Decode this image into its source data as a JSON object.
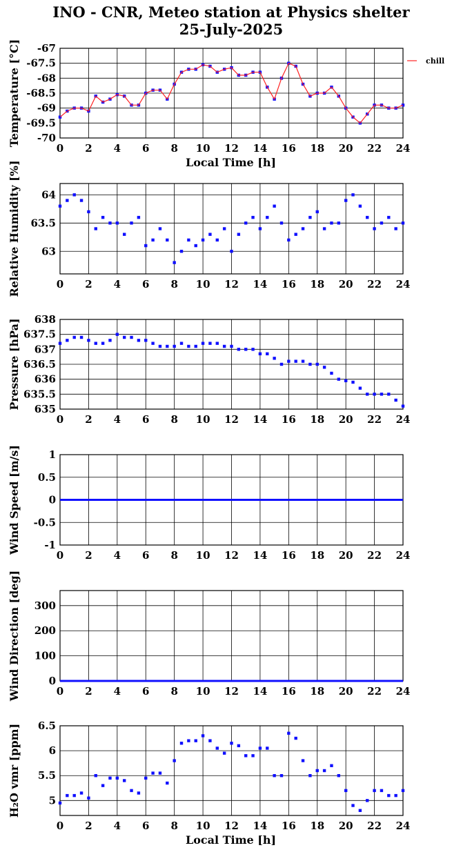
{
  "header": {
    "title_line1": "INO - CNR, Meteo station at Physics shelter",
    "title_line2": "25-July-2025"
  },
  "colors": {
    "series_blue": "#1010ff",
    "series_red": "#ff2020",
    "grid": "#000000"
  },
  "chart_data": [
    {
      "type": "scatter",
      "ylabel": "Temperature [°C]",
      "xlabel": "Local Time [h]",
      "xlim": [
        0,
        24
      ],
      "ylim": [
        -70,
        -67
      ],
      "xticks": [
        "0",
        "2",
        "4",
        "6",
        "8",
        "10",
        "12",
        "14",
        "16",
        "18",
        "20",
        "22",
        "24"
      ],
      "yticks": [
        {
          "v": -67,
          "t": "-67"
        },
        {
          "v": -67.5,
          "t": "-67.5"
        },
        {
          "v": -68,
          "t": "-68"
        },
        {
          "v": -68.5,
          "t": "-68.5"
        },
        {
          "v": -69,
          "t": "-69"
        },
        {
          "v": -69.5,
          "t": "-69.5"
        },
        {
          "v": -70,
          "t": "-70"
        }
      ],
      "grid": true,
      "legend": {
        "entries": [
          "chill"
        ],
        "position": "outside-right"
      },
      "series": [
        {
          "name": "",
          "color": "#1010ff",
          "marker": "square",
          "x": [
            0,
            0.5,
            1,
            1.5,
            2,
            2.5,
            3,
            3.5,
            4,
            4.5,
            5,
            5.5,
            6,
            6.5,
            7,
            7.5,
            8,
            8.5,
            9,
            9.5,
            10,
            10.5,
            11,
            11.5,
            12,
            12.5,
            13,
            13.5,
            14,
            14.5,
            15,
            15.5,
            16,
            16.5,
            17,
            17.5,
            18,
            18.5,
            19,
            19.5,
            20,
            20.5,
            21,
            21.5,
            22,
            22.5,
            23,
            23.5,
            24
          ],
          "y": [
            -69.3,
            -69.1,
            -69.0,
            -69.0,
            -69.1,
            -68.6,
            -68.8,
            -68.7,
            -68.55,
            -68.6,
            -68.9,
            -68.9,
            -68.5,
            -68.4,
            -68.4,
            -68.7,
            -68.2,
            -67.8,
            -67.7,
            -67.7,
            -67.55,
            -67.6,
            -67.8,
            -67.7,
            -67.65,
            -67.9,
            -67.9,
            -67.8,
            -67.8,
            -68.3,
            -68.7,
            -68.0,
            -67.5,
            -67.6,
            -68.2,
            -68.6,
            -68.5,
            -68.5,
            -68.3,
            -68.6,
            -69.0,
            -69.3,
            -69.5,
            -69.2,
            -68.9,
            -68.9,
            -69.0,
            -69.0,
            -68.9
          ]
        },
        {
          "name": "chill",
          "color": "#ff2020",
          "marker": "line",
          "x": [
            0,
            0.5,
            1,
            1.5,
            2,
            2.5,
            3,
            3.5,
            4,
            4.5,
            5,
            5.5,
            6,
            6.5,
            7,
            7.5,
            8,
            8.5,
            9,
            9.5,
            10,
            10.5,
            11,
            11.5,
            12,
            12.5,
            13,
            13.5,
            14,
            14.5,
            15,
            15.5,
            16,
            16.5,
            17,
            17.5,
            18,
            18.5,
            19,
            19.5,
            20,
            20.5,
            21,
            21.5,
            22,
            22.5,
            23,
            23.5,
            24
          ],
          "y": [
            -69.3,
            -69.1,
            -69.0,
            -69.0,
            -69.1,
            -68.6,
            -68.8,
            -68.7,
            -68.55,
            -68.6,
            -68.9,
            -68.9,
            -68.5,
            -68.4,
            -68.4,
            -68.7,
            -68.2,
            -67.8,
            -67.7,
            -67.7,
            -67.55,
            -67.6,
            -67.8,
            -67.7,
            -67.65,
            -67.9,
            -67.9,
            -67.8,
            -67.8,
            -68.3,
            -68.7,
            -68.0,
            -67.5,
            -67.6,
            -68.2,
            -68.6,
            -68.5,
            -68.5,
            -68.3,
            -68.6,
            -69.0,
            -69.3,
            -69.5,
            -69.2,
            -68.9,
            -68.9,
            -69.0,
            -69.0,
            -68.9
          ]
        }
      ]
    },
    {
      "type": "scatter",
      "ylabel": "Relative Humidity [%]",
      "xlabel": "",
      "xlim": [
        0,
        24
      ],
      "ylim": [
        62.6,
        64.2
      ],
      "xticks": [
        "0",
        "2",
        "4",
        "6",
        "8",
        "10",
        "12",
        "14",
        "16",
        "18",
        "20",
        "22",
        "24"
      ],
      "yticks": [
        {
          "v": 63,
          "t": "63"
        },
        {
          "v": 63.5,
          "t": "63.5"
        },
        {
          "v": 64,
          "t": "64"
        }
      ],
      "grid": true,
      "series": [
        {
          "name": "",
          "color": "#1010ff",
          "marker": "square",
          "x": [
            0,
            0.5,
            1,
            1.5,
            2,
            2.5,
            3,
            3.5,
            4,
            4.5,
            5,
            5.5,
            6,
            6.5,
            7,
            7.5,
            8,
            8.5,
            9,
            9.5,
            10,
            10.5,
            11,
            11.5,
            12,
            12.5,
            13,
            13.5,
            14,
            14.5,
            15,
            15.5,
            16,
            16.5,
            17,
            17.5,
            18,
            18.5,
            19,
            19.5,
            20,
            20.5,
            21,
            21.5,
            22,
            22.5,
            23,
            23.5,
            24
          ],
          "y": [
            63.8,
            63.9,
            64.0,
            63.9,
            63.7,
            63.4,
            63.6,
            63.5,
            63.5,
            63.3,
            63.5,
            63.6,
            63.1,
            63.2,
            63.4,
            63.2,
            62.8,
            63.0,
            63.2,
            63.1,
            63.2,
            63.3,
            63.2,
            63.4,
            63.0,
            63.3,
            63.5,
            63.6,
            63.4,
            63.6,
            63.8,
            63.5,
            63.2,
            63.3,
            63.4,
            63.6,
            63.7,
            63.4,
            63.5,
            63.5,
            63.9,
            64.0,
            63.8,
            63.6,
            63.4,
            63.5,
            63.6,
            63.4,
            63.5
          ]
        }
      ]
    },
    {
      "type": "scatter",
      "ylabel": "Pressure [hPa]",
      "xlabel": "",
      "xlim": [
        0,
        24
      ],
      "ylim": [
        635,
        638
      ],
      "xticks": [
        "0",
        "2",
        "4",
        "6",
        "8",
        "10",
        "12",
        "14",
        "16",
        "18",
        "20",
        "22",
        "24"
      ],
      "yticks": [
        {
          "v": 635,
          "t": "635"
        },
        {
          "v": 635.5,
          "t": "635.5"
        },
        {
          "v": 636,
          "t": "636"
        },
        {
          "v": 636.5,
          "t": "636.5"
        },
        {
          "v": 637,
          "t": "637"
        },
        {
          "v": 637.5,
          "t": "637.5"
        },
        {
          "v": 638,
          "t": "638"
        }
      ],
      "grid": true,
      "series": [
        {
          "name": "",
          "color": "#1010ff",
          "marker": "square",
          "x": [
            0,
            0.5,
            1,
            1.5,
            2,
            2.5,
            3,
            3.5,
            4,
            4.5,
            5,
            5.5,
            6,
            6.5,
            7,
            7.5,
            8,
            8.5,
            9,
            9.5,
            10,
            10.5,
            11,
            11.5,
            12,
            12.5,
            13,
            13.5,
            14,
            14.5,
            15,
            15.5,
            16,
            16.5,
            17,
            17.5,
            18,
            18.5,
            19,
            19.5,
            20,
            20.5,
            21,
            21.5,
            22,
            22.5,
            23,
            23.5,
            24
          ],
          "y": [
            637.2,
            637.3,
            637.4,
            637.4,
            637.3,
            637.2,
            637.2,
            637.3,
            637.5,
            637.4,
            637.4,
            637.3,
            637.3,
            637.2,
            637.1,
            637.1,
            637.1,
            637.2,
            637.1,
            637.1,
            637.2,
            637.2,
            637.2,
            637.1,
            637.1,
            637.0,
            637.0,
            637.0,
            636.85,
            636.85,
            636.7,
            636.5,
            636.6,
            636.6,
            636.6,
            636.5,
            636.5,
            636.4,
            636.2,
            636.0,
            635.95,
            635.9,
            635.7,
            635.5,
            635.5,
            635.5,
            635.5,
            635.3,
            635.1
          ]
        }
      ]
    },
    {
      "type": "line",
      "ylabel": "Wind Speed [m/s]",
      "xlabel": "",
      "xlim": [
        0,
        24
      ],
      "ylim": [
        -1,
        1
      ],
      "xticks": [
        "0",
        "2",
        "4",
        "6",
        "8",
        "10",
        "12",
        "14",
        "16",
        "18",
        "20",
        "22",
        "24"
      ],
      "yticks": [
        {
          "v": -1,
          "t": "-1"
        },
        {
          "v": -0.5,
          "t": "-0.5"
        },
        {
          "v": 0,
          "t": "0"
        },
        {
          "v": 0.5,
          "t": "0.5"
        },
        {
          "v": 1,
          "t": "1"
        }
      ],
      "grid": true,
      "series": [
        {
          "name": "",
          "color": "#1010ff",
          "marker": "line",
          "x": [
            0,
            4,
            8,
            12,
            16,
            20,
            24
          ],
          "y": [
            0,
            0,
            0,
            0,
            0,
            0,
            0
          ]
        }
      ]
    },
    {
      "type": "line",
      "ylabel": "Wind Direction [deg]",
      "xlabel": "",
      "xlim": [
        0,
        24
      ],
      "ylim": [
        0,
        360
      ],
      "xticks": [
        "0",
        "2",
        "4",
        "6",
        "8",
        "10",
        "12",
        "14",
        "16",
        "18",
        "20",
        "22",
        "24"
      ],
      "yticks": [
        {
          "v": 0,
          "t": "0"
        },
        {
          "v": 100,
          "t": "100"
        },
        {
          "v": 200,
          "t": "200"
        },
        {
          "v": 300,
          "t": "300"
        }
      ],
      "grid": true,
      "series": [
        {
          "name": "",
          "color": "#1010ff",
          "marker": "line",
          "x": [
            0,
            4,
            8,
            12,
            16,
            20,
            24
          ],
          "y": [
            0,
            0,
            0,
            0,
            0,
            0,
            0
          ]
        }
      ]
    },
    {
      "type": "scatter",
      "ylabel": "H₂O vmr [ppm]",
      "xlabel": "Local Time [h]",
      "xlim": [
        0,
        24
      ],
      "ylim": [
        4.7,
        6.5
      ],
      "xticks": [
        "0",
        "2",
        "4",
        "6",
        "8",
        "10",
        "12",
        "14",
        "16",
        "18",
        "20",
        "22",
        "24"
      ],
      "yticks": [
        {
          "v": 5,
          "t": "5"
        },
        {
          "v": 5.5,
          "t": "5.5"
        },
        {
          "v": 6,
          "t": "6"
        },
        {
          "v": 6.5,
          "t": "6.5"
        }
      ],
      "grid": true,
      "series": [
        {
          "name": "",
          "color": "#1010ff",
          "marker": "square",
          "x": [
            0,
            0.5,
            1,
            1.5,
            2,
            2.5,
            3,
            3.5,
            4,
            4.5,
            5,
            5.5,
            6,
            6.5,
            7,
            7.5,
            8,
            8.5,
            9,
            9.5,
            10,
            10.5,
            11,
            11.5,
            12,
            12.5,
            13,
            13.5,
            14,
            14.5,
            15,
            15.5,
            16,
            16.5,
            17,
            17.5,
            18,
            18.5,
            19,
            19.5,
            20,
            20.5,
            21,
            21.5,
            22,
            22.5,
            23,
            23.5,
            24
          ],
          "y": [
            4.95,
            5.1,
            5.1,
            5.15,
            5.05,
            5.5,
            5.3,
            5.45,
            5.45,
            5.4,
            5.2,
            5.15,
            5.45,
            5.55,
            5.55,
            5.35,
            5.8,
            6.15,
            6.2,
            6.2,
            6.3,
            6.2,
            6.05,
            5.95,
            6.15,
            6.1,
            5.9,
            5.9,
            6.05,
            6.05,
            5.5,
            5.5,
            6.35,
            6.25,
            5.8,
            5.5,
            5.6,
            5.6,
            5.7,
            5.5,
            5.2,
            4.9,
            4.8,
            5.0,
            5.2,
            5.2,
            5.1,
            5.1,
            5.2
          ]
        }
      ]
    }
  ]
}
